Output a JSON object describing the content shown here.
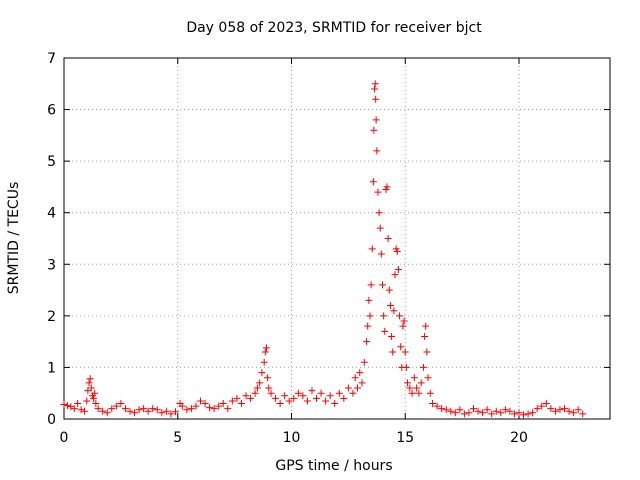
{
  "chart_data": {
    "type": "scatter",
    "title": "Day 058 of 2023, SRMTID for receiver bjct",
    "xlabel": "GPS time / hours",
    "ylabel": "SRMTID / TECUs",
    "xlim": [
      0,
      24
    ],
    "ylim": [
      0,
      7
    ],
    "xticks": [
      0,
      5,
      10,
      15,
      20
    ],
    "yticks": [
      0,
      1,
      2,
      3,
      4,
      5,
      6,
      7
    ],
    "grid": true,
    "marker": "+",
    "color": "#ff0000",
    "series": [
      {
        "points": [
          [
            0.0,
            0.28
          ],
          [
            0.15,
            0.26
          ],
          [
            0.3,
            0.24
          ],
          [
            0.45,
            0.2
          ],
          [
            0.6,
            0.3
          ],
          [
            0.75,
            0.18
          ],
          [
            0.9,
            0.15
          ],
          [
            1.0,
            0.35
          ],
          [
            1.05,
            0.55
          ],
          [
            1.1,
            0.7
          ],
          [
            1.15,
            0.78
          ],
          [
            1.2,
            0.6
          ],
          [
            1.25,
            0.45
          ],
          [
            1.3,
            0.4
          ],
          [
            1.35,
            0.5
          ],
          [
            1.4,
            0.3
          ],
          [
            1.5,
            0.2
          ],
          [
            1.7,
            0.15
          ],
          [
            1.9,
            0.12
          ],
          [
            2.1,
            0.2
          ],
          [
            2.3,
            0.25
          ],
          [
            2.5,
            0.3
          ],
          [
            2.7,
            0.2
          ],
          [
            2.9,
            0.15
          ],
          [
            3.1,
            0.12
          ],
          [
            3.3,
            0.18
          ],
          [
            3.5,
            0.2
          ],
          [
            3.7,
            0.15
          ],
          [
            3.9,
            0.2
          ],
          [
            4.1,
            0.18
          ],
          [
            4.3,
            0.12
          ],
          [
            4.5,
            0.15
          ],
          [
            4.7,
            0.1
          ],
          [
            4.9,
            0.14
          ],
          [
            5.1,
            0.3
          ],
          [
            5.2,
            0.25
          ],
          [
            5.4,
            0.18
          ],
          [
            5.6,
            0.2
          ],
          [
            5.8,
            0.25
          ],
          [
            6.0,
            0.35
          ],
          [
            6.2,
            0.3
          ],
          [
            6.4,
            0.22
          ],
          [
            6.6,
            0.2
          ],
          [
            6.8,
            0.25
          ],
          [
            7.0,
            0.3
          ],
          [
            7.2,
            0.2
          ],
          [
            7.4,
            0.35
          ],
          [
            7.6,
            0.4
          ],
          [
            7.8,
            0.3
          ],
          [
            8.0,
            0.45
          ],
          [
            8.2,
            0.4
          ],
          [
            8.4,
            0.5
          ],
          [
            8.5,
            0.6
          ],
          [
            8.6,
            0.7
          ],
          [
            8.7,
            0.9
          ],
          [
            8.8,
            1.1
          ],
          [
            8.85,
            1.3
          ],
          [
            8.9,
            1.38
          ],
          [
            8.95,
            0.8
          ],
          [
            9.0,
            0.6
          ],
          [
            9.1,
            0.5
          ],
          [
            9.3,
            0.4
          ],
          [
            9.5,
            0.3
          ],
          [
            9.7,
            0.45
          ],
          [
            9.9,
            0.35
          ],
          [
            10.1,
            0.4
          ],
          [
            10.3,
            0.5
          ],
          [
            10.5,
            0.45
          ],
          [
            10.7,
            0.35
          ],
          [
            10.9,
            0.55
          ],
          [
            11.1,
            0.4
          ],
          [
            11.3,
            0.5
          ],
          [
            11.5,
            0.35
          ],
          [
            11.7,
            0.45
          ],
          [
            11.9,
            0.3
          ],
          [
            12.1,
            0.5
          ],
          [
            12.3,
            0.4
          ],
          [
            12.5,
            0.6
          ],
          [
            12.7,
            0.5
          ],
          [
            12.8,
            0.8
          ],
          [
            12.9,
            0.6
          ],
          [
            13.0,
            0.9
          ],
          [
            13.1,
            0.7
          ],
          [
            13.2,
            1.1
          ],
          [
            13.3,
            1.5
          ],
          [
            13.35,
            1.8
          ],
          [
            13.4,
            2.3
          ],
          [
            13.45,
            2.0
          ],
          [
            13.5,
            2.6
          ],
          [
            13.55,
            3.3
          ],
          [
            13.6,
            4.6
          ],
          [
            13.62,
            5.6
          ],
          [
            13.65,
            6.4
          ],
          [
            13.68,
            6.5
          ],
          [
            13.7,
            6.2
          ],
          [
            13.72,
            5.8
          ],
          [
            13.75,
            5.2
          ],
          [
            13.8,
            4.4
          ],
          [
            13.85,
            4.0
          ],
          [
            13.9,
            3.7
          ],
          [
            13.95,
            3.2
          ],
          [
            14.0,
            2.6
          ],
          [
            14.05,
            2.0
          ],
          [
            14.1,
            1.7
          ],
          [
            14.15,
            4.45
          ],
          [
            14.2,
            4.5
          ],
          [
            14.25,
            3.5
          ],
          [
            14.3,
            2.5
          ],
          [
            14.35,
            2.2
          ],
          [
            14.4,
            1.6
          ],
          [
            14.45,
            1.3
          ],
          [
            14.5,
            2.1
          ],
          [
            14.55,
            2.8
          ],
          [
            14.6,
            3.3
          ],
          [
            14.65,
            3.25
          ],
          [
            14.7,
            2.9
          ],
          [
            14.75,
            2.0
          ],
          [
            14.8,
            1.4
          ],
          [
            14.85,
            1.0
          ],
          [
            14.9,
            1.8
          ],
          [
            14.95,
            1.9
          ],
          [
            15.0,
            1.3
          ],
          [
            15.05,
            1.0
          ],
          [
            15.1,
            0.7
          ],
          [
            15.2,
            0.6
          ],
          [
            15.3,
            0.5
          ],
          [
            15.4,
            0.8
          ],
          [
            15.5,
            0.6
          ],
          [
            15.6,
            0.5
          ],
          [
            15.7,
            0.7
          ],
          [
            15.8,
            1.0
          ],
          [
            15.85,
            1.6
          ],
          [
            15.9,
            1.8
          ],
          [
            15.95,
            1.3
          ],
          [
            16.0,
            0.8
          ],
          [
            16.1,
            0.5
          ],
          [
            16.2,
            0.3
          ],
          [
            16.4,
            0.25
          ],
          [
            16.6,
            0.2
          ],
          [
            16.8,
            0.18
          ],
          [
            17.0,
            0.15
          ],
          [
            17.2,
            0.12
          ],
          [
            17.4,
            0.18
          ],
          [
            17.6,
            0.1
          ],
          [
            17.8,
            0.12
          ],
          [
            18.0,
            0.2
          ],
          [
            18.2,
            0.15
          ],
          [
            18.4,
            0.12
          ],
          [
            18.6,
            0.18
          ],
          [
            18.8,
            0.1
          ],
          [
            19.0,
            0.15
          ],
          [
            19.2,
            0.12
          ],
          [
            19.4,
            0.18
          ],
          [
            19.6,
            0.15
          ],
          [
            19.8,
            0.1
          ],
          [
            20.0,
            0.12
          ],
          [
            20.2,
            0.08
          ],
          [
            20.4,
            0.1
          ],
          [
            20.6,
            0.12
          ],
          [
            20.8,
            0.2
          ],
          [
            21.0,
            0.25
          ],
          [
            21.2,
            0.3
          ],
          [
            21.4,
            0.2
          ],
          [
            21.6,
            0.15
          ],
          [
            21.8,
            0.18
          ],
          [
            22.0,
            0.2
          ],
          [
            22.2,
            0.15
          ],
          [
            22.4,
            0.12
          ],
          [
            22.6,
            0.18
          ],
          [
            22.8,
            0.1
          ]
        ]
      }
    ]
  }
}
